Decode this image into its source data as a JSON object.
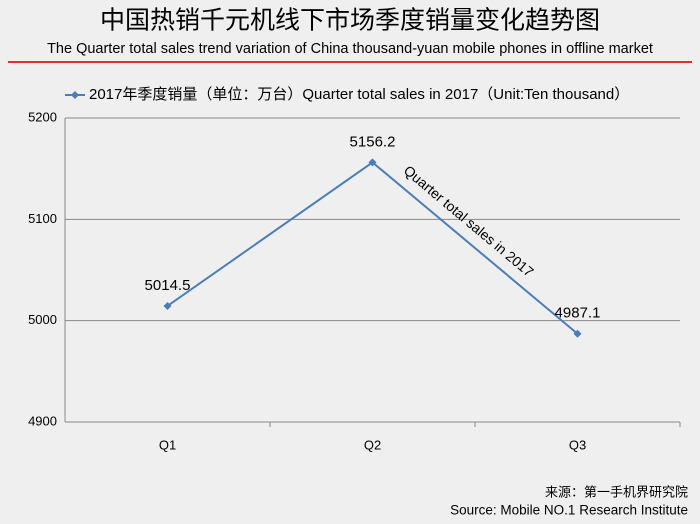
{
  "chart_data": {
    "type": "line",
    "title": "中国热销千元机线下市场季度销量变化趋势图",
    "subtitle": "The Quarter total sales trend variation of China thousand-yuan mobile phones in offline market",
    "categories": [
      "Q1",
      "Q2",
      "Q3"
    ],
    "series": [
      {
        "name": "2017年季度销量（单位：万台）Quarter total sales in 2017（Unit:Ten thousand）",
        "color": "#4a7ebb",
        "values": [
          5014.5,
          5156.2,
          4987.1
        ]
      }
    ],
    "ylim": [
      4900,
      5200
    ],
    "yticks": [
      4900,
      5000,
      5100,
      5200
    ],
    "grid": true,
    "annotation": "Quarter total sales in 2017",
    "source": [
      "来源：第一手机界研究院",
      "Source: Mobile NO.1 Research Institute"
    ]
  }
}
